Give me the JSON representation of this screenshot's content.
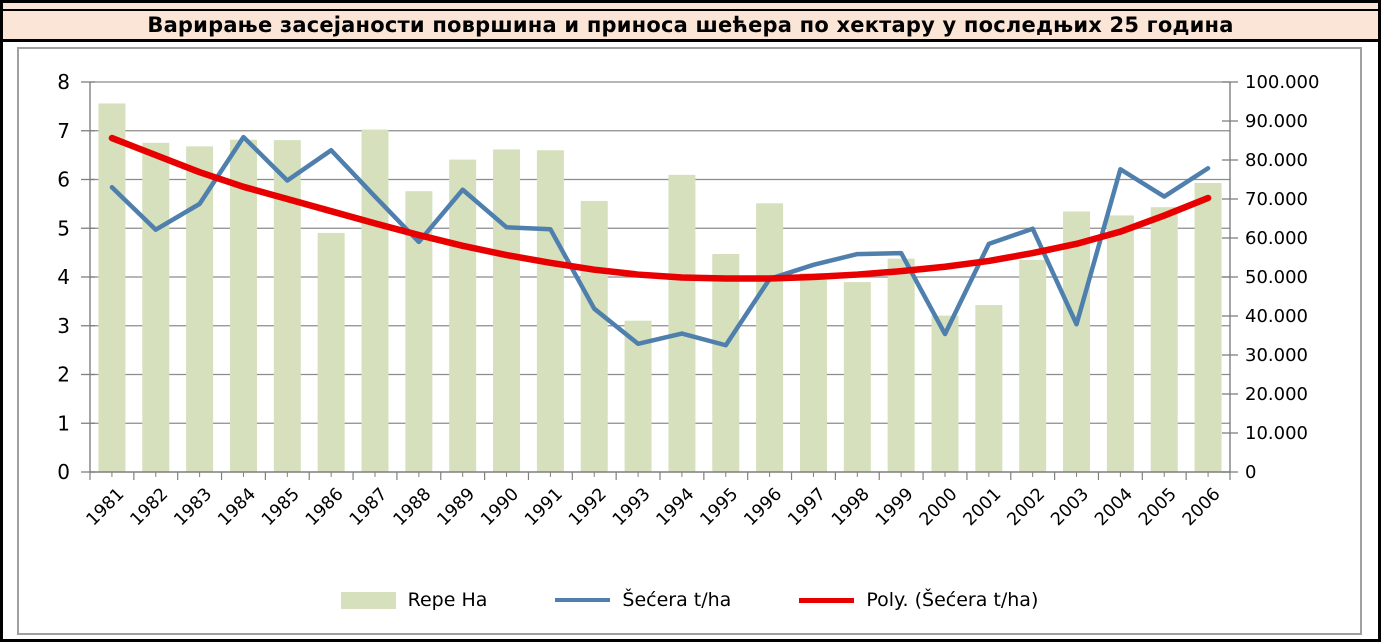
{
  "title": "Варирање засејаности површина и приноса шећера по хектару у последњих 25 година",
  "legend": {
    "items": [
      {
        "label": "Repe Ha"
      },
      {
        "label": "Šećera t/ha"
      },
      {
        "label": "Poly. (Šećera t/ha)"
      }
    ]
  },
  "colors": {
    "background": "#fbe5d6",
    "plot_background": "#ffffff",
    "bar": "#d6e0bc",
    "line": "#4f7fad",
    "trend": "#e80000",
    "gridline": "#8c8c8c",
    "axis": "#7f7f7f",
    "text": "#000000"
  },
  "chart_data": {
    "type": "bar",
    "subtype": "combo-bar-line-trend",
    "title": "Варирање засејаности површина и приноса шећера по хектару у последњих 25 година",
    "categories": [
      "1981",
      "1982",
      "1983",
      "1984",
      "1985",
      "1986",
      "1987",
      "1988",
      "1989",
      "1990",
      "1991",
      "1992",
      "1993",
      "1994",
      "1995",
      "1996",
      "1997",
      "1998",
      "1999",
      "2000",
      "2001",
      "2002",
      "2003",
      "2004",
      "2005",
      "2006"
    ],
    "series": [
      {
        "name": "Repe Ha",
        "type": "bar",
        "axis": "right",
        "color": "#d6e0bc",
        "values": [
          94500,
          84400,
          83500,
          85200,
          85100,
          61300,
          87800,
          72000,
          80100,
          82700,
          82500,
          69500,
          38800,
          76200,
          55900,
          68900,
          51000,
          48700,
          54700,
          40100,
          42800,
          54400,
          66800,
          65800,
          67900,
          74100
        ]
      },
      {
        "name": "Šećera t/ha",
        "type": "line",
        "axis": "left",
        "color": "#4f7fad",
        "values": [
          5.84,
          4.97,
          5.5,
          6.87,
          5.98,
          6.6,
          5.65,
          4.72,
          5.79,
          5.02,
          4.98,
          3.35,
          2.63,
          2.84,
          2.6,
          3.96,
          4.25,
          4.47,
          4.49,
          2.83,
          4.68,
          4.99,
          3.03,
          6.21,
          5.65,
          6.23
        ]
      },
      {
        "name": "Poly. (Šećera t/ha)",
        "type": "trend",
        "axis": "left",
        "color": "#e80000",
        "values": [
          6.85,
          6.5,
          6.15,
          5.85,
          5.6,
          5.35,
          5.1,
          4.86,
          4.64,
          4.45,
          4.29,
          4.15,
          4.05,
          3.99,
          3.97,
          3.97,
          4.0,
          4.05,
          4.12,
          4.21,
          4.33,
          4.49,
          4.68,
          4.93,
          5.26,
          5.62
        ]
      }
    ],
    "left_axis": {
      "min": 0,
      "max": 8,
      "tick_labels": [
        "0",
        "1",
        "2",
        "3",
        "4",
        "5",
        "6",
        "7",
        "8"
      ]
    },
    "right_axis": {
      "min": 0,
      "max": 100000,
      "tick_labels": [
        "0",
        "10.000",
        "20.000",
        "30.000",
        "40.000",
        "50.000",
        "60.000",
        "70.000",
        "80.000",
        "90.000",
        "100.000"
      ]
    },
    "grid": true,
    "x_label_rotation": -45,
    "legend_position": "bottom"
  }
}
